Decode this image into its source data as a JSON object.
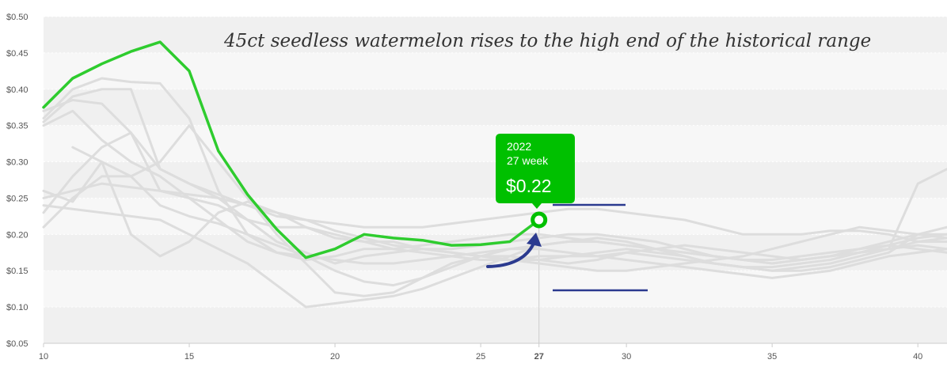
{
  "chart_data": {
    "type": "line",
    "annotation": "45ct seedless watermelon rises to the high end of the historical range",
    "xlim": [
      10,
      41
    ],
    "ylim": [
      0.05,
      0.5
    ],
    "x_ticks": [
      10,
      15,
      20,
      25,
      27,
      30,
      35,
      40
    ],
    "x_tick_labels": [
      "10",
      "15",
      "20",
      "25",
      "27",
      "30",
      "35",
      "40"
    ],
    "y_ticks": [
      0.05,
      0.1,
      0.15,
      0.2,
      0.25,
      0.3,
      0.35,
      0.4,
      0.45,
      0.5
    ],
    "y_tick_labels": [
      "$0.05",
      "$0.10",
      "$0.15",
      "$0.20",
      "$0.25",
      "$0.30",
      "$0.35",
      "$0.40",
      "$0.45",
      "$0.50"
    ],
    "grid": true,
    "highlight_x": 27,
    "colors": {
      "highlight": "#2ecc2e",
      "history": "#dddddd",
      "marker_arrow": "#2b3a8f",
      "tooltip": "#00c000"
    },
    "highlight_series": {
      "x": [
        10,
        11,
        12,
        13,
        14,
        15,
        16,
        17,
        18,
        19,
        20,
        21,
        22,
        23,
        24,
        25,
        26,
        27
      ],
      "values": [
        0.375,
        0.415,
        0.435,
        0.452,
        0.465,
        0.425,
        0.315,
        0.255,
        0.207,
        0.168,
        0.18,
        0.2,
        0.195,
        0.192,
        0.185,
        0.186,
        0.19,
        0.22
      ]
    },
    "history_series": [
      {
        "x": [
          10,
          11,
          12,
          13,
          14,
          15,
          16,
          17,
          18,
          19,
          20,
          21,
          22,
          23,
          24,
          25,
          26,
          27,
          28,
          29,
          30,
          31,
          32,
          33,
          34,
          35,
          36,
          37,
          38,
          39,
          40,
          41
        ],
        "values": [
          0.36,
          0.4,
          0.415,
          0.41,
          0.408,
          0.36,
          0.26,
          0.2,
          0.175,
          0.165,
          0.17,
          0.18,
          0.18,
          0.185,
          0.19,
          0.195,
          0.2,
          0.2,
          0.195,
          0.19,
          0.185,
          0.18,
          0.175,
          0.17,
          0.165,
          0.16,
          0.165,
          0.17,
          0.18,
          0.19,
          0.2,
          0.2
        ]
      },
      {
        "x": [
          10,
          11,
          12,
          13,
          14,
          15,
          16,
          17,
          18,
          19,
          20,
          21,
          22,
          23,
          24,
          25,
          26,
          27,
          28,
          29,
          30,
          31,
          32,
          33,
          34,
          35,
          36,
          37,
          38,
          39,
          40,
          41
        ],
        "values": [
          0.355,
          0.39,
          0.4,
          0.4,
          0.29,
          0.27,
          0.25,
          0.22,
          0.19,
          0.175,
          0.16,
          0.17,
          0.175,
          0.18,
          0.175,
          0.17,
          0.165,
          0.17,
          0.17,
          0.175,
          0.18,
          0.175,
          0.17,
          0.16,
          0.155,
          0.15,
          0.155,
          0.16,
          0.17,
          0.18,
          0.27,
          0.29
        ]
      },
      {
        "x": [
          10,
          11,
          12,
          13,
          14,
          15,
          16,
          17,
          18,
          19,
          20,
          21,
          22,
          23,
          24,
          25,
          26,
          27,
          28,
          29,
          30,
          31,
          32,
          33,
          34,
          35,
          36,
          37,
          38,
          39,
          40,
          41
        ],
        "values": [
          0.37,
          0.385,
          0.38,
          0.34,
          0.26,
          0.25,
          0.24,
          0.22,
          0.21,
          0.21,
          0.2,
          0.19,
          0.18,
          0.175,
          0.17,
          0.165,
          0.165,
          0.165,
          0.17,
          0.17,
          0.175,
          0.17,
          0.165,
          0.16,
          0.155,
          0.15,
          0.15,
          0.155,
          0.165,
          0.175,
          0.2,
          0.21
        ]
      },
      {
        "x": [
          10,
          11,
          12,
          13,
          14,
          15,
          16,
          17,
          18,
          19,
          20,
          21,
          22,
          23,
          24,
          25,
          26,
          27,
          28,
          29,
          30,
          31,
          32,
          33,
          34,
          35,
          36,
          37,
          38,
          39,
          40,
          41
        ],
        "values": [
          0.23,
          0.28,
          0.32,
          0.34,
          0.29,
          0.27,
          0.255,
          0.24,
          0.225,
          0.22,
          0.215,
          0.21,
          0.21,
          0.21,
          0.215,
          0.22,
          0.225,
          0.23,
          0.235,
          0.235,
          0.23,
          0.225,
          0.22,
          0.21,
          0.2,
          0.2,
          0.2,
          0.205,
          0.205,
          0.2,
          0.19,
          0.19
        ]
      },
      {
        "x": [
          10,
          11,
          12,
          13,
          14,
          15,
          16,
          17,
          18,
          19,
          20,
          21,
          22,
          23,
          24,
          25,
          26,
          27,
          28,
          29,
          30,
          31,
          32,
          33,
          34,
          35,
          36,
          37,
          38,
          39,
          40,
          41
        ],
        "values": [
          0.26,
          0.245,
          0.3,
          0.28,
          0.24,
          0.225,
          0.215,
          0.2,
          0.185,
          0.17,
          0.15,
          0.135,
          0.13,
          0.14,
          0.155,
          0.17,
          0.18,
          0.185,
          0.19,
          0.195,
          0.19,
          0.18,
          0.17,
          0.16,
          0.155,
          0.155,
          0.16,
          0.165,
          0.175,
          0.185,
          0.195,
          0.2
        ]
      },
      {
        "x": [
          10,
          11,
          12,
          13,
          14,
          15,
          16,
          17,
          18,
          19,
          20,
          21,
          22,
          23,
          24,
          25,
          26,
          27,
          28,
          29,
          30,
          31,
          32,
          33,
          34,
          35,
          36,
          37,
          38,
          39,
          40,
          41
        ],
        "values": [
          0.21,
          0.25,
          0.28,
          0.28,
          0.3,
          0.35,
          0.3,
          0.25,
          0.2,
          0.16,
          0.12,
          0.115,
          0.12,
          0.14,
          0.16,
          0.17,
          0.17,
          0.165,
          0.16,
          0.165,
          0.175,
          0.18,
          0.185,
          0.18,
          0.175,
          0.17,
          0.165,
          0.17,
          0.175,
          0.18,
          0.185,
          0.18
        ]
      },
      {
        "x": [
          11,
          12,
          13,
          14,
          15,
          16,
          17,
          18,
          19,
          20,
          21,
          22,
          23,
          24,
          25,
          26,
          27,
          28,
          29,
          30,
          31,
          32,
          33,
          34,
          35,
          36,
          37,
          38,
          39,
          40,
          41
        ],
        "values": [
          0.32,
          0.3,
          0.2,
          0.17,
          0.19,
          0.23,
          0.245,
          0.23,
          0.21,
          0.195,
          0.19,
          0.19,
          0.18,
          0.175,
          0.17,
          0.165,
          0.16,
          0.155,
          0.15,
          0.15,
          0.155,
          0.16,
          0.165,
          0.17,
          0.18,
          0.19,
          0.2,
          0.21,
          0.205,
          0.2,
          0.195
        ]
      },
      {
        "x": [
          10,
          11,
          12,
          13,
          14,
          15,
          16,
          17,
          18,
          19,
          20,
          21,
          22,
          23,
          24,
          25,
          26,
          27,
          28,
          29,
          30,
          31,
          32,
          33,
          34,
          35,
          36,
          37,
          38,
          39,
          40,
          41
        ],
        "values": [
          0.24,
          0.235,
          0.23,
          0.225,
          0.22,
          0.2,
          0.18,
          0.16,
          0.13,
          0.1,
          0.105,
          0.11,
          0.115,
          0.125,
          0.14,
          0.155,
          0.17,
          0.185,
          0.19,
          0.19,
          0.185,
          0.18,
          0.175,
          0.17,
          0.165,
          0.165,
          0.17,
          0.175,
          0.18,
          0.185,
          0.18,
          0.175
        ]
      },
      {
        "x": [
          10,
          11,
          12,
          13,
          14,
          15,
          16,
          17,
          18,
          19,
          20,
          21,
          22,
          23,
          24,
          25,
          26,
          27,
          28,
          29,
          30,
          31,
          32,
          33,
          34,
          35,
          36,
          37,
          38,
          39,
          40,
          41
        ],
        "values": [
          0.25,
          0.26,
          0.27,
          0.265,
          0.26,
          0.255,
          0.25,
          0.24,
          0.23,
          0.22,
          0.205,
          0.195,
          0.185,
          0.18,
          0.18,
          0.185,
          0.19,
          0.195,
          0.2,
          0.2,
          0.195,
          0.19,
          0.18,
          0.17,
          0.165,
          0.16,
          0.165,
          0.17,
          0.175,
          0.18,
          0.19,
          0.195
        ]
      },
      {
        "x": [
          10,
          11,
          12,
          13,
          14,
          15,
          16,
          17,
          18,
          19,
          20,
          21,
          22,
          23,
          24,
          25,
          26,
          27,
          28,
          29,
          30,
          31,
          32,
          33,
          34,
          35,
          36,
          37,
          38,
          39,
          40,
          41
        ],
        "values": [
          0.35,
          0.37,
          0.33,
          0.3,
          0.28,
          0.25,
          0.22,
          0.19,
          0.175,
          0.17,
          0.165,
          0.16,
          0.16,
          0.165,
          0.17,
          0.175,
          0.18,
          0.18,
          0.175,
          0.17,
          0.165,
          0.16,
          0.155,
          0.15,
          0.145,
          0.14,
          0.145,
          0.15,
          0.16,
          0.17,
          0.175,
          0.18
        ]
      }
    ],
    "tooltip": {
      "year": "2022",
      "week": "27 week",
      "value": "$0.22"
    }
  }
}
